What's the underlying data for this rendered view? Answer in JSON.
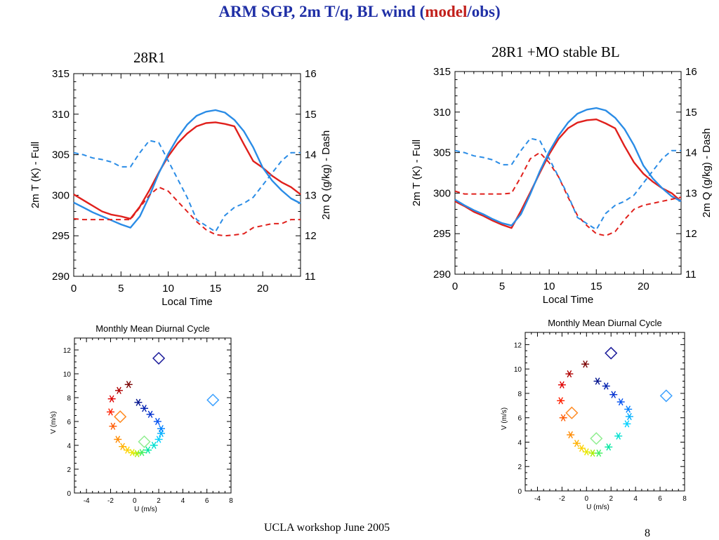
{
  "slide": {
    "title_main": "ARM SGP, 2m T/q, BL wind (",
    "title_highlight": "model",
    "title_end": "/obs)",
    "colors": {
      "title": "#1f2fa6",
      "highlight": "#c2201c",
      "model": "#e0201c",
      "obs": "#2a8ce6"
    }
  },
  "left_panel_title": "28R1",
  "right_panel_title": "28R1 +MO stable BL",
  "footer": {
    "text": "UCLA workshop June 2005",
    "page": "8"
  },
  "chart_data": [
    {
      "type": "line",
      "id": "ts-left",
      "title": "28R1",
      "xlabel": "Local Time",
      "ylabel": "2m T (K) - Full",
      "y2label": "2m Q (g/kg) - Dash",
      "xlim": [
        0,
        24
      ],
      "ylim": [
        290,
        315
      ],
      "y2lim": [
        11,
        16
      ],
      "xticks": [
        0,
        5,
        10,
        15,
        20
      ],
      "yticks": [
        290,
        295,
        300,
        305,
        310,
        315
      ],
      "y2ticks": [
        11,
        12,
        13,
        14,
        15,
        16
      ],
      "series": [
        {
          "axis": "T",
          "role": "model",
          "style": "solid",
          "color": "#e0201c",
          "x": [
            0,
            1,
            2,
            3,
            4,
            5,
            6,
            7,
            8,
            9,
            10,
            11,
            12,
            13,
            14,
            15,
            16,
            17,
            18,
            19,
            20,
            21,
            22,
            23,
            24
          ],
          "y": [
            300.1,
            299.4,
            298.7,
            298.0,
            297.6,
            297.4,
            297.1,
            298.6,
            300.6,
            302.8,
            304.8,
            306.4,
            307.6,
            308.5,
            308.9,
            309.0,
            308.8,
            308.5,
            306.3,
            304.2,
            303.4,
            302.4,
            301.6,
            301.0,
            300.1
          ]
        },
        {
          "axis": "T",
          "role": "obs",
          "style": "solid",
          "color": "#2a8ce6",
          "x": [
            0,
            1,
            2,
            3,
            4,
            5,
            6,
            7,
            8,
            9,
            10,
            11,
            12,
            13,
            14,
            15,
            16,
            17,
            18,
            19,
            20,
            21,
            22,
            23,
            24
          ],
          "y": [
            299.1,
            298.5,
            297.9,
            297.4,
            296.9,
            296.4,
            296.0,
            297.4,
            299.9,
            302.7,
            305.1,
            307.1,
            308.7,
            309.8,
            310.3,
            310.5,
            310.2,
            309.3,
            307.9,
            305.9,
            303.4,
            301.8,
            300.6,
            299.6,
            299.0
          ]
        },
        {
          "axis": "Q",
          "role": "model",
          "style": "dash",
          "color": "#e0201c",
          "x": [
            0,
            1,
            2,
            3,
            4,
            5,
            6,
            7,
            8,
            9,
            10,
            11,
            12,
            13,
            14,
            15,
            16,
            17,
            18,
            19,
            20,
            21,
            22,
            23,
            24
          ],
          "y": [
            12.42,
            12.4,
            12.4,
            12.4,
            12.4,
            12.4,
            12.4,
            12.7,
            13.0,
            13.2,
            13.1,
            12.85,
            12.6,
            12.35,
            12.15,
            12.03,
            12.0,
            12.02,
            12.05,
            12.2,
            12.25,
            12.3,
            12.3,
            12.4,
            12.4
          ]
        },
        {
          "axis": "Q",
          "role": "obs",
          "style": "dash",
          "color": "#2a8ce6",
          "x": [
            0,
            1,
            2,
            3,
            4,
            5,
            6,
            7,
            8,
            9,
            10,
            11,
            12,
            13,
            14,
            15,
            16,
            17,
            18,
            19,
            20,
            21,
            22,
            23,
            24
          ],
          "y": [
            14.05,
            14.0,
            13.92,
            13.88,
            13.82,
            13.7,
            13.7,
            14.05,
            14.35,
            14.3,
            13.85,
            13.4,
            12.95,
            12.4,
            12.25,
            12.1,
            12.5,
            12.7,
            12.8,
            12.95,
            13.25,
            13.55,
            13.85,
            14.05,
            14.05
          ]
        }
      ]
    },
    {
      "type": "line",
      "id": "ts-right",
      "title": "28R1 +MO stable BL",
      "xlabel": "Local Time",
      "ylabel": "2m T (K) - Full",
      "y2label": "2m Q (g/kg) - Dash",
      "xlim": [
        0,
        24
      ],
      "ylim": [
        290,
        315
      ],
      "y2lim": [
        11,
        16
      ],
      "xticks": [
        0,
        5,
        10,
        15,
        20
      ],
      "yticks": [
        290,
        295,
        300,
        305,
        310,
        315
      ],
      "y2ticks": [
        11,
        12,
        13,
        14,
        15,
        16
      ],
      "series": [
        {
          "axis": "T",
          "role": "model",
          "style": "solid",
          "color": "#e0201c",
          "x": [
            0,
            1,
            2,
            3,
            4,
            5,
            6,
            7,
            8,
            9,
            10,
            11,
            12,
            13,
            14,
            15,
            16,
            17,
            18,
            19,
            20,
            21,
            22,
            23,
            24
          ],
          "y": [
            299.0,
            298.4,
            297.7,
            297.2,
            296.6,
            296.1,
            295.7,
            297.8,
            300.1,
            302.5,
            304.8,
            306.7,
            308.0,
            308.7,
            309.0,
            309.1,
            308.6,
            308.0,
            305.8,
            303.8,
            302.4,
            301.4,
            300.6,
            300.0,
            299.0
          ]
        },
        {
          "axis": "T",
          "role": "obs",
          "style": "solid",
          "color": "#2a8ce6",
          "x": [
            0,
            1,
            2,
            3,
            4,
            5,
            6,
            7,
            8,
            9,
            10,
            11,
            12,
            13,
            14,
            15,
            16,
            17,
            18,
            19,
            20,
            21,
            22,
            23,
            24
          ],
          "y": [
            299.2,
            298.5,
            297.9,
            297.4,
            296.8,
            296.3,
            296.0,
            297.4,
            299.9,
            302.7,
            305.1,
            307.1,
            308.7,
            309.8,
            310.3,
            310.5,
            310.2,
            309.3,
            307.9,
            305.9,
            303.4,
            301.8,
            300.6,
            299.6,
            299.0
          ]
        },
        {
          "axis": "Q",
          "role": "model",
          "style": "dash",
          "color": "#e0201c",
          "x": [
            0,
            1,
            2,
            3,
            4,
            5,
            6,
            7,
            8,
            9,
            10,
            11,
            12,
            13,
            14,
            15,
            16,
            17,
            18,
            19,
            20,
            21,
            22,
            23,
            24
          ],
          "y": [
            13.05,
            12.98,
            12.98,
            12.98,
            12.98,
            12.98,
            13.0,
            13.4,
            13.85,
            14.0,
            13.75,
            13.4,
            12.9,
            12.45,
            12.2,
            12.0,
            11.95,
            12.05,
            12.35,
            12.6,
            12.7,
            12.75,
            12.8,
            12.85,
            12.9
          ]
        },
        {
          "axis": "Q",
          "role": "obs",
          "style": "dash",
          "color": "#2a8ce6",
          "x": [
            0,
            1,
            2,
            3,
            4,
            5,
            6,
            7,
            8,
            9,
            10,
            11,
            12,
            13,
            14,
            15,
            16,
            17,
            18,
            19,
            20,
            21,
            22,
            23,
            24
          ],
          "y": [
            14.05,
            14.0,
            13.92,
            13.88,
            13.82,
            13.7,
            13.7,
            14.05,
            14.35,
            14.3,
            13.85,
            13.4,
            12.95,
            12.4,
            12.25,
            12.1,
            12.5,
            12.7,
            12.8,
            12.95,
            13.25,
            13.55,
            13.85,
            14.05,
            14.05
          ]
        }
      ]
    },
    {
      "type": "scatter",
      "id": "hodo-left",
      "title": "Monthly Mean Diurnal Cycle",
      "xlabel": "U (m/s)",
      "ylabel": "V (m/s)",
      "xlim": [
        -5,
        8
      ],
      "ylim": [
        0,
        13
      ],
      "xticks": [
        -4,
        -2,
        0,
        2,
        4,
        6,
        8
      ],
      "yticks": [
        0,
        2,
        4,
        6,
        8,
        10,
        12
      ],
      "model_points": [
        {
          "u": -0.5,
          "v": 9.1,
          "color": "#7a0000"
        },
        {
          "u": -1.3,
          "v": 8.6,
          "color": "#b00000"
        },
        {
          "u": -1.9,
          "v": 7.9,
          "color": "#e00000"
        },
        {
          "u": -2.0,
          "v": 6.8,
          "color": "#ff2000"
        },
        {
          "u": -1.8,
          "v": 5.6,
          "color": "#ff5a00"
        },
        {
          "u": -1.4,
          "v": 4.5,
          "color": "#ff8a00"
        },
        {
          "u": -1.0,
          "v": 3.9,
          "color": "#ffb000"
        },
        {
          "u": -0.6,
          "v": 3.6,
          "color": "#ffd000"
        },
        {
          "u": -0.2,
          "v": 3.4,
          "color": "#e8e800"
        },
        {
          "u": 0.2,
          "v": 3.3,
          "color": "#a8ee00"
        },
        {
          "u": 0.6,
          "v": 3.4,
          "color": "#40f060"
        },
        {
          "u": 1.1,
          "v": 3.6,
          "color": "#00e8a0"
        },
        {
          "u": 1.6,
          "v": 4.0,
          "color": "#00e0d0"
        },
        {
          "u": 2.0,
          "v": 4.5,
          "color": "#00d0ff"
        },
        {
          "u": 2.2,
          "v": 5.0,
          "color": "#00b0ff"
        },
        {
          "u": 2.2,
          "v": 5.4,
          "color": "#0080ff"
        },
        {
          "u": 1.9,
          "v": 6.0,
          "color": "#0050f0"
        },
        {
          "u": 1.3,
          "v": 6.6,
          "color": "#0030d0"
        },
        {
          "u": 0.8,
          "v": 7.1,
          "color": "#0020b0"
        },
        {
          "u": 0.3,
          "v": 7.6,
          "color": "#00128c"
        }
      ],
      "obs_points": [
        {
          "u": 2.0,
          "v": 11.3,
          "color": "#1a1a9a"
        },
        {
          "u": 6.5,
          "v": 7.8,
          "color": "#3aa0ff"
        },
        {
          "u": -1.2,
          "v": 6.4,
          "color": "#ff8a20"
        },
        {
          "u": 0.8,
          "v": 4.3,
          "color": "#90ee90"
        }
      ]
    },
    {
      "type": "scatter",
      "id": "hodo-right",
      "title": "Monthly Mean Diurnal Cycle",
      "xlabel": "U (m/s)",
      "ylabel": "V (m/s)",
      "xlim": [
        -5,
        8
      ],
      "ylim": [
        0,
        13
      ],
      "xticks": [
        -4,
        -2,
        0,
        2,
        4,
        6,
        8
      ],
      "yticks": [
        0,
        2,
        4,
        6,
        8,
        10,
        12
      ],
      "model_points": [
        {
          "u": -0.1,
          "v": 10.4,
          "color": "#7a0000"
        },
        {
          "u": -1.4,
          "v": 9.6,
          "color": "#b00000"
        },
        {
          "u": -2.0,
          "v": 8.7,
          "color": "#e00000"
        },
        {
          "u": -2.1,
          "v": 7.4,
          "color": "#ff2000"
        },
        {
          "u": -1.9,
          "v": 6.0,
          "color": "#ff5a00"
        },
        {
          "u": -1.3,
          "v": 4.6,
          "color": "#ff8a00"
        },
        {
          "u": -0.8,
          "v": 3.9,
          "color": "#ffb000"
        },
        {
          "u": -0.4,
          "v": 3.5,
          "color": "#ffd000"
        },
        {
          "u": 0.0,
          "v": 3.2,
          "color": "#e8e800"
        },
        {
          "u": 0.5,
          "v": 3.1,
          "color": "#a8ee00"
        },
        {
          "u": 1.0,
          "v": 3.1,
          "color": "#40f060"
        },
        {
          "u": 1.8,
          "v": 3.6,
          "color": "#00e8a0"
        },
        {
          "u": 2.6,
          "v": 4.5,
          "color": "#00e0d0"
        },
        {
          "u": 3.3,
          "v": 5.5,
          "color": "#00d0ff"
        },
        {
          "u": 3.5,
          "v": 6.1,
          "color": "#00b0ff"
        },
        {
          "u": 3.4,
          "v": 6.7,
          "color": "#0080ff"
        },
        {
          "u": 2.8,
          "v": 7.3,
          "color": "#0050f0"
        },
        {
          "u": 2.2,
          "v": 7.9,
          "color": "#0030d0"
        },
        {
          "u": 1.6,
          "v": 8.6,
          "color": "#0020b0"
        },
        {
          "u": 0.9,
          "v": 9.0,
          "color": "#00128c"
        }
      ],
      "obs_points": [
        {
          "u": 2.0,
          "v": 11.3,
          "color": "#1a1a9a"
        },
        {
          "u": 6.5,
          "v": 7.8,
          "color": "#3aa0ff"
        },
        {
          "u": -1.2,
          "v": 6.4,
          "color": "#ff8a20"
        },
        {
          "u": 0.8,
          "v": 4.3,
          "color": "#90ee90"
        }
      ]
    }
  ]
}
